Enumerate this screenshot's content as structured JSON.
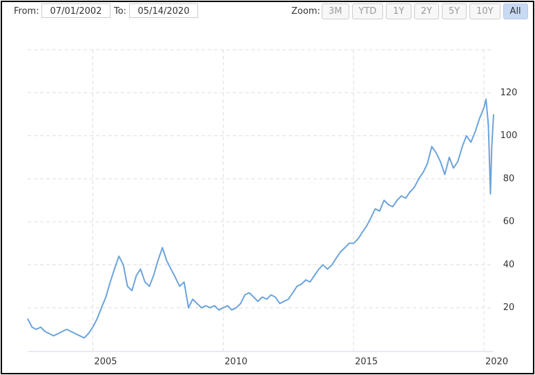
{
  "controls": {
    "from_label": "From:",
    "from_value": "07/01/2002",
    "to_label": "To:",
    "to_value": "05/14/2020",
    "zoom_label": "Zoom:",
    "zoom_buttons": [
      "3M",
      "YTD",
      "1Y",
      "2Y",
      "5Y",
      "10Y",
      "All"
    ],
    "zoom_selected": "All"
  },
  "chart_data": {
    "type": "line",
    "x": [
      2002.5,
      2002.67,
      2002.83,
      2003.0,
      2003.17,
      2003.33,
      2003.5,
      2003.67,
      2003.83,
      2004.0,
      2004.17,
      2004.33,
      2004.5,
      2004.67,
      2004.83,
      2005.0,
      2005.17,
      2005.33,
      2005.5,
      2005.67,
      2005.83,
      2006.0,
      2006.17,
      2006.33,
      2006.5,
      2006.67,
      2006.83,
      2007.0,
      2007.17,
      2007.33,
      2007.5,
      2007.67,
      2007.83,
      2008.0,
      2008.17,
      2008.33,
      2008.5,
      2008.67,
      2008.83,
      2009.0,
      2009.17,
      2009.33,
      2009.5,
      2009.67,
      2009.83,
      2010.0,
      2010.17,
      2010.33,
      2010.5,
      2010.67,
      2010.83,
      2011.0,
      2011.17,
      2011.33,
      2011.5,
      2011.67,
      2011.83,
      2012.0,
      2012.17,
      2012.33,
      2012.5,
      2012.67,
      2012.83,
      2013.0,
      2013.17,
      2013.33,
      2013.5,
      2013.67,
      2013.83,
      2014.0,
      2014.17,
      2014.33,
      2014.5,
      2014.67,
      2014.83,
      2015.0,
      2015.17,
      2015.33,
      2015.5,
      2015.67,
      2015.83,
      2016.0,
      2016.17,
      2016.33,
      2016.5,
      2016.67,
      2016.83,
      2017.0,
      2017.17,
      2017.33,
      2017.5,
      2017.67,
      2017.83,
      2018.0,
      2018.17,
      2018.33,
      2018.5,
      2018.67,
      2018.83,
      2019.0,
      2019.17,
      2019.33,
      2019.5,
      2019.67,
      2019.83,
      2020.0,
      2020.08,
      2020.17,
      2020.25,
      2020.3,
      2020.37
    ],
    "series": [
      {
        "color": "#6aa3db",
        "values": [
          15,
          11,
          10,
          11,
          9,
          8,
          7,
          8,
          9,
          10,
          9,
          8,
          7,
          6,
          8,
          11,
          15,
          20,
          25,
          32,
          38,
          44,
          40,
          30,
          28,
          35,
          38,
          32,
          30,
          35,
          42,
          48,
          42,
          38,
          34,
          30,
          32,
          20,
          24,
          22,
          20,
          21,
          20,
          21,
          19,
          20,
          21,
          19,
          20,
          22,
          26,
          27,
          25,
          23,
          25,
          24,
          26,
          25,
          22,
          23,
          24,
          27,
          30,
          31,
          33,
          32,
          35,
          38,
          40,
          38,
          40,
          43,
          46,
          48,
          50,
          50,
          52,
          55,
          58,
          62,
          66,
          65,
          70,
          68,
          67,
          70,
          72,
          71,
          74,
          76,
          80,
          83,
          87,
          95,
          92,
          88,
          82,
          90,
          85,
          88,
          95,
          100,
          97,
          102,
          108,
          113,
          117,
          105,
          73,
          95,
          110
        ]
      }
    ],
    "xlim": [
      2002.5,
      2020.37
    ],
    "xticks": [
      2005,
      2010,
      2015,
      2020
    ],
    "ylim": [
      0,
      140
    ],
    "yticks": [
      20,
      40,
      60,
      80,
      100,
      120
    ],
    "grid": true
  }
}
